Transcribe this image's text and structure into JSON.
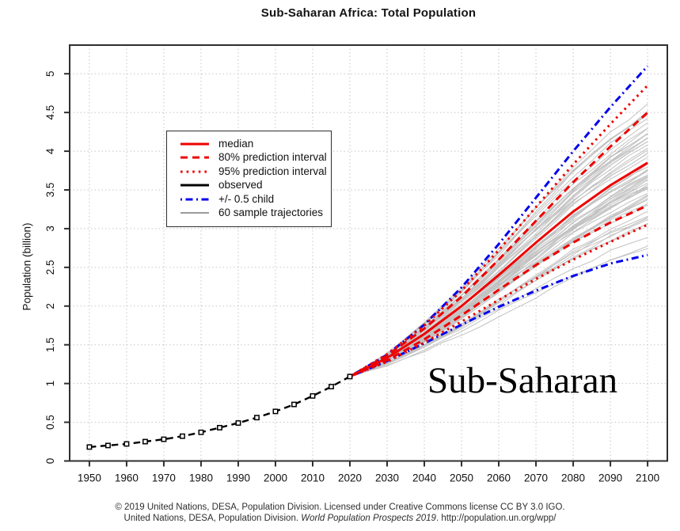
{
  "chart_data": {
    "type": "line",
    "title": "Sub-Saharan Africa: Total Population",
    "xlabel": "",
    "ylabel": "Population (billion)",
    "annotation": {
      "text": "Sub-Saharan"
    },
    "grid": true,
    "legend_position": "upper-left-inset",
    "x_range": [
      1944.7,
      2105.3
    ],
    "y_range": [
      0,
      5.37
    ],
    "x_ticks": [
      1950,
      1960,
      1970,
      1980,
      1990,
      2000,
      2010,
      2020,
      2030,
      2040,
      2050,
      2060,
      2070,
      2080,
      2090,
      2100
    ],
    "y_ticks": [
      0,
      0.5,
      1,
      1.5,
      2,
      2.5,
      3,
      3.5,
      4,
      4.5,
      5
    ],
    "legend": [
      {
        "label": "median",
        "color": "#ee0000",
        "dash": "",
        "width": 3
      },
      {
        "label": "80% prediction interval",
        "color": "#ee0000",
        "dash": "9 6",
        "width": 3
      },
      {
        "label": "95% prediction interval",
        "color": "#ee0000",
        "dash": "2.6 5",
        "width": 3
      },
      {
        "label": "observed",
        "color": "#000000",
        "dash": "",
        "width": 3
      },
      {
        "label": "+/- 0.5 child",
        "color": "#0000ee",
        "dash": "2 4.5 9 4.5",
        "width": 3
      },
      {
        "label": "60 sample trajectories",
        "color": "#9b9b9b",
        "dash": "",
        "width": 2
      }
    ],
    "observed": {
      "name": "observed",
      "color": "#000000",
      "dash": "8.5 5.5",
      "width": 2.4,
      "marker": "open-square",
      "years": [
        1950,
        1955,
        1960,
        1965,
        1970,
        1975,
        1980,
        1985,
        1990,
        1995,
        2000,
        2005,
        2010,
        2015,
        2020
      ],
      "values": [
        0.18,
        0.2,
        0.22,
        0.25,
        0.28,
        0.32,
        0.37,
        0.43,
        0.49,
        0.56,
        0.64,
        0.73,
        0.84,
        0.96,
        1.09
      ]
    },
    "projection": {
      "years": [
        2020,
        2030,
        2040,
        2050,
        2060,
        2070,
        2080,
        2090,
        2100
      ],
      "series": [
        {
          "key": "half_child_upper",
          "name": "+0.5 child",
          "color": "#0000ee",
          "dash": "2 4.5 9 4.5",
          "width": 3,
          "values": [
            1.09,
            1.37,
            1.76,
            2.24,
            2.8,
            3.4,
            4.0,
            4.57,
            5.1
          ]
        },
        {
          "key": "half_child_lower",
          "name": "-0.5 child",
          "color": "#0000ee",
          "dash": "2 4.5 9 4.5",
          "width": 3,
          "values": [
            1.09,
            1.29,
            1.52,
            1.76,
            1.99,
            2.2,
            2.39,
            2.55,
            2.66
          ]
        },
        {
          "key": "pi95_upper",
          "name": "95% prediction interval upper",
          "color": "#ee0000",
          "dash": "2.6 5",
          "width": 3,
          "values": [
            1.09,
            1.38,
            1.75,
            2.2,
            2.72,
            3.28,
            3.83,
            4.35,
            4.85
          ]
        },
        {
          "key": "pi95_lower",
          "name": "95% prediction interval lower",
          "color": "#ee0000",
          "dash": "2.6 5",
          "width": 3,
          "values": [
            1.09,
            1.28,
            1.53,
            1.8,
            2.08,
            2.35,
            2.6,
            2.83,
            3.05
          ]
        },
        {
          "key": "pi80_upper",
          "name": "80% prediction interval upper",
          "color": "#ee0000",
          "dash": "9 6",
          "width": 3,
          "values": [
            1.09,
            1.36,
            1.71,
            2.12,
            2.6,
            3.1,
            3.6,
            4.06,
            4.5
          ]
        },
        {
          "key": "pi80_lower",
          "name": "80% prediction interval lower",
          "color": "#ee0000",
          "dash": "9 6",
          "width": 3,
          "values": [
            1.09,
            1.3,
            1.57,
            1.88,
            2.21,
            2.53,
            2.82,
            3.08,
            3.3
          ]
        },
        {
          "key": "median",
          "name": "median",
          "color": "#ee0000",
          "dash": "",
          "width": 3,
          "values": [
            1.09,
            1.33,
            1.64,
            2.0,
            2.4,
            2.82,
            3.22,
            3.56,
            3.85
          ]
        }
      ]
    },
    "trajectories": {
      "count": 60,
      "seed": 11,
      "end_center": 3.8,
      "end_spread": 0.9,
      "end_min": 2.82,
      "end_max": 4.78,
      "color": "#9b9b9b",
      "width": 1,
      "opacity": 0.6
    }
  },
  "footer": {
    "line1": "© 2019 United Nations, DESA, Population Division. Licensed under Creative Commons license CC BY 3.0 IGO.",
    "line2_pre": "United Nations, DESA, Population Division. ",
    "line2_italic": "World Population Prospects 2019",
    "line2_post": ". http://population.un.org/wpp/"
  }
}
